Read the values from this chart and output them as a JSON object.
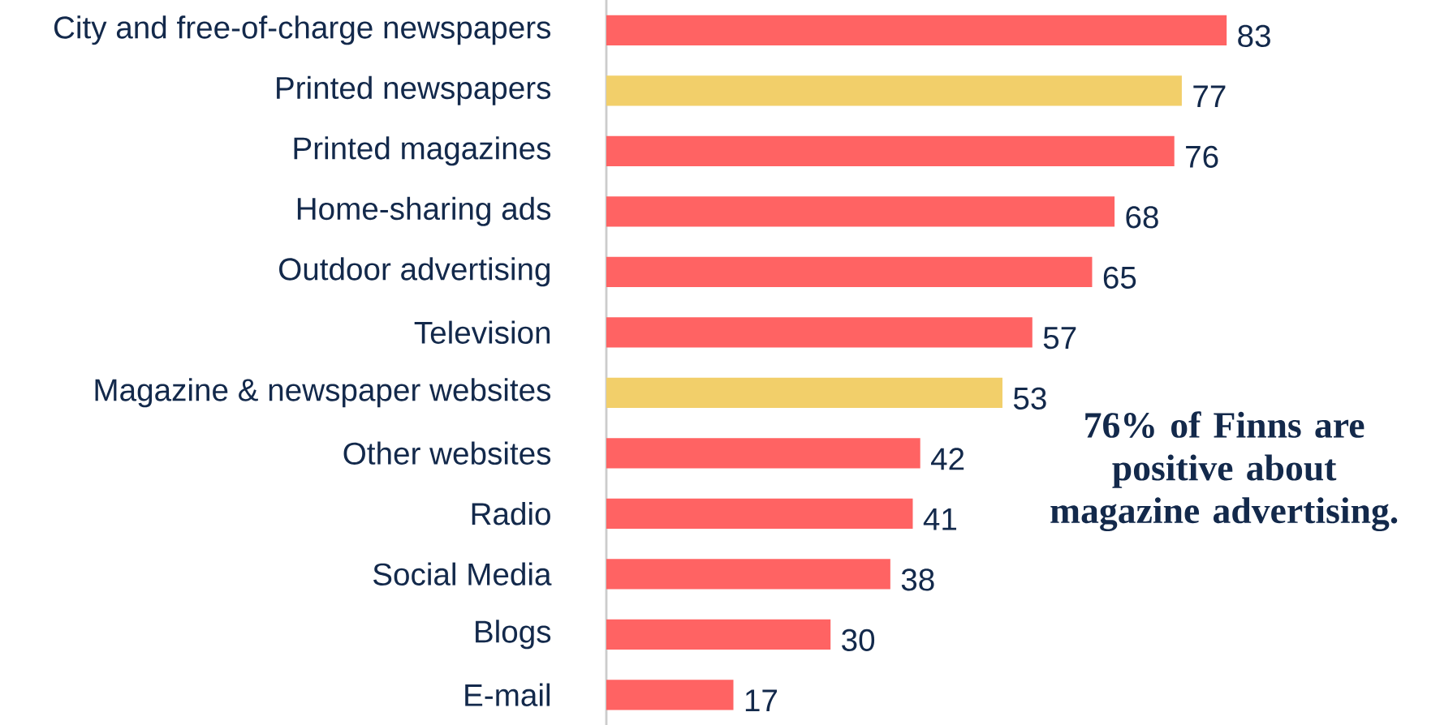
{
  "chart_data": {
    "type": "bar",
    "orientation": "horizontal",
    "data_labels": true,
    "categories": [
      "City and free-of-charge newspapers",
      "Printed newspapers",
      "Printed magazines",
      "Home-sharing ads",
      "Outdoor advertising",
      "Television",
      "Magazine & newspaper websites",
      "Other websites",
      "Radio",
      "Social Media",
      "Blogs",
      "E-mail"
    ],
    "values": [
      83,
      77,
      76,
      68,
      65,
      57,
      53,
      42,
      41,
      38,
      30,
      17
    ],
    "colors": [
      "#ff6363",
      "#f2cf6a",
      "#ff6363",
      "#ff6363",
      "#ff6363",
      "#ff6363",
      "#f2cf6a",
      "#ff6363",
      "#ff6363",
      "#ff6363",
      "#ff6363",
      "#ff6363"
    ],
    "annotations": [
      "76% of Finns are positive about magazine advertising."
    ]
  }
}
